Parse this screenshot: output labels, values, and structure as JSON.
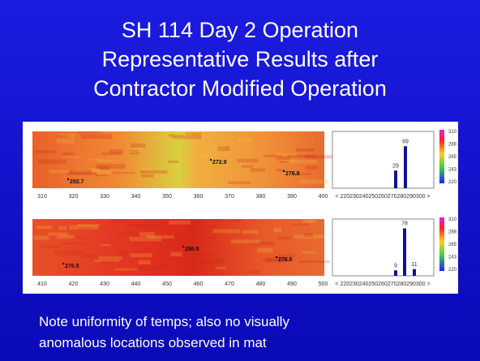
{
  "title": [
    "SH 114 Day 2 Operation",
    "Representative Results after",
    "Contractor Modified Operation"
  ],
  "panels": [
    {
      "annotations": [
        "272.9",
        "276.8",
        "292.7"
      ],
      "x_ticks": [
        "310",
        "320",
        "330",
        "340",
        "350",
        "360",
        "370",
        "380",
        "390",
        "400"
      ],
      "histogram": {
        "axis_label": "< 220230240250260270280290300 >",
        "values": [
          29,
          69
        ]
      },
      "colorbar": [
        "310",
        "288",
        "265",
        "243",
        "220"
      ]
    },
    {
      "annotations": [
        "298.8",
        "276.6",
        "276.5"
      ],
      "x_ticks": [
        "410",
        "420",
        "430",
        "440",
        "450",
        "460",
        "470",
        "480",
        "490",
        "500"
      ],
      "histogram": {
        "axis_label": "< 220230240250260270280290300 >",
        "values": [
          9,
          78,
          11
        ]
      },
      "colorbar": [
        "310",
        "288",
        "265",
        "243",
        "220"
      ]
    }
  ],
  "note": [
    "Note uniformity of temps; also no visually",
    "anomalous locations observed in mat"
  ]
}
